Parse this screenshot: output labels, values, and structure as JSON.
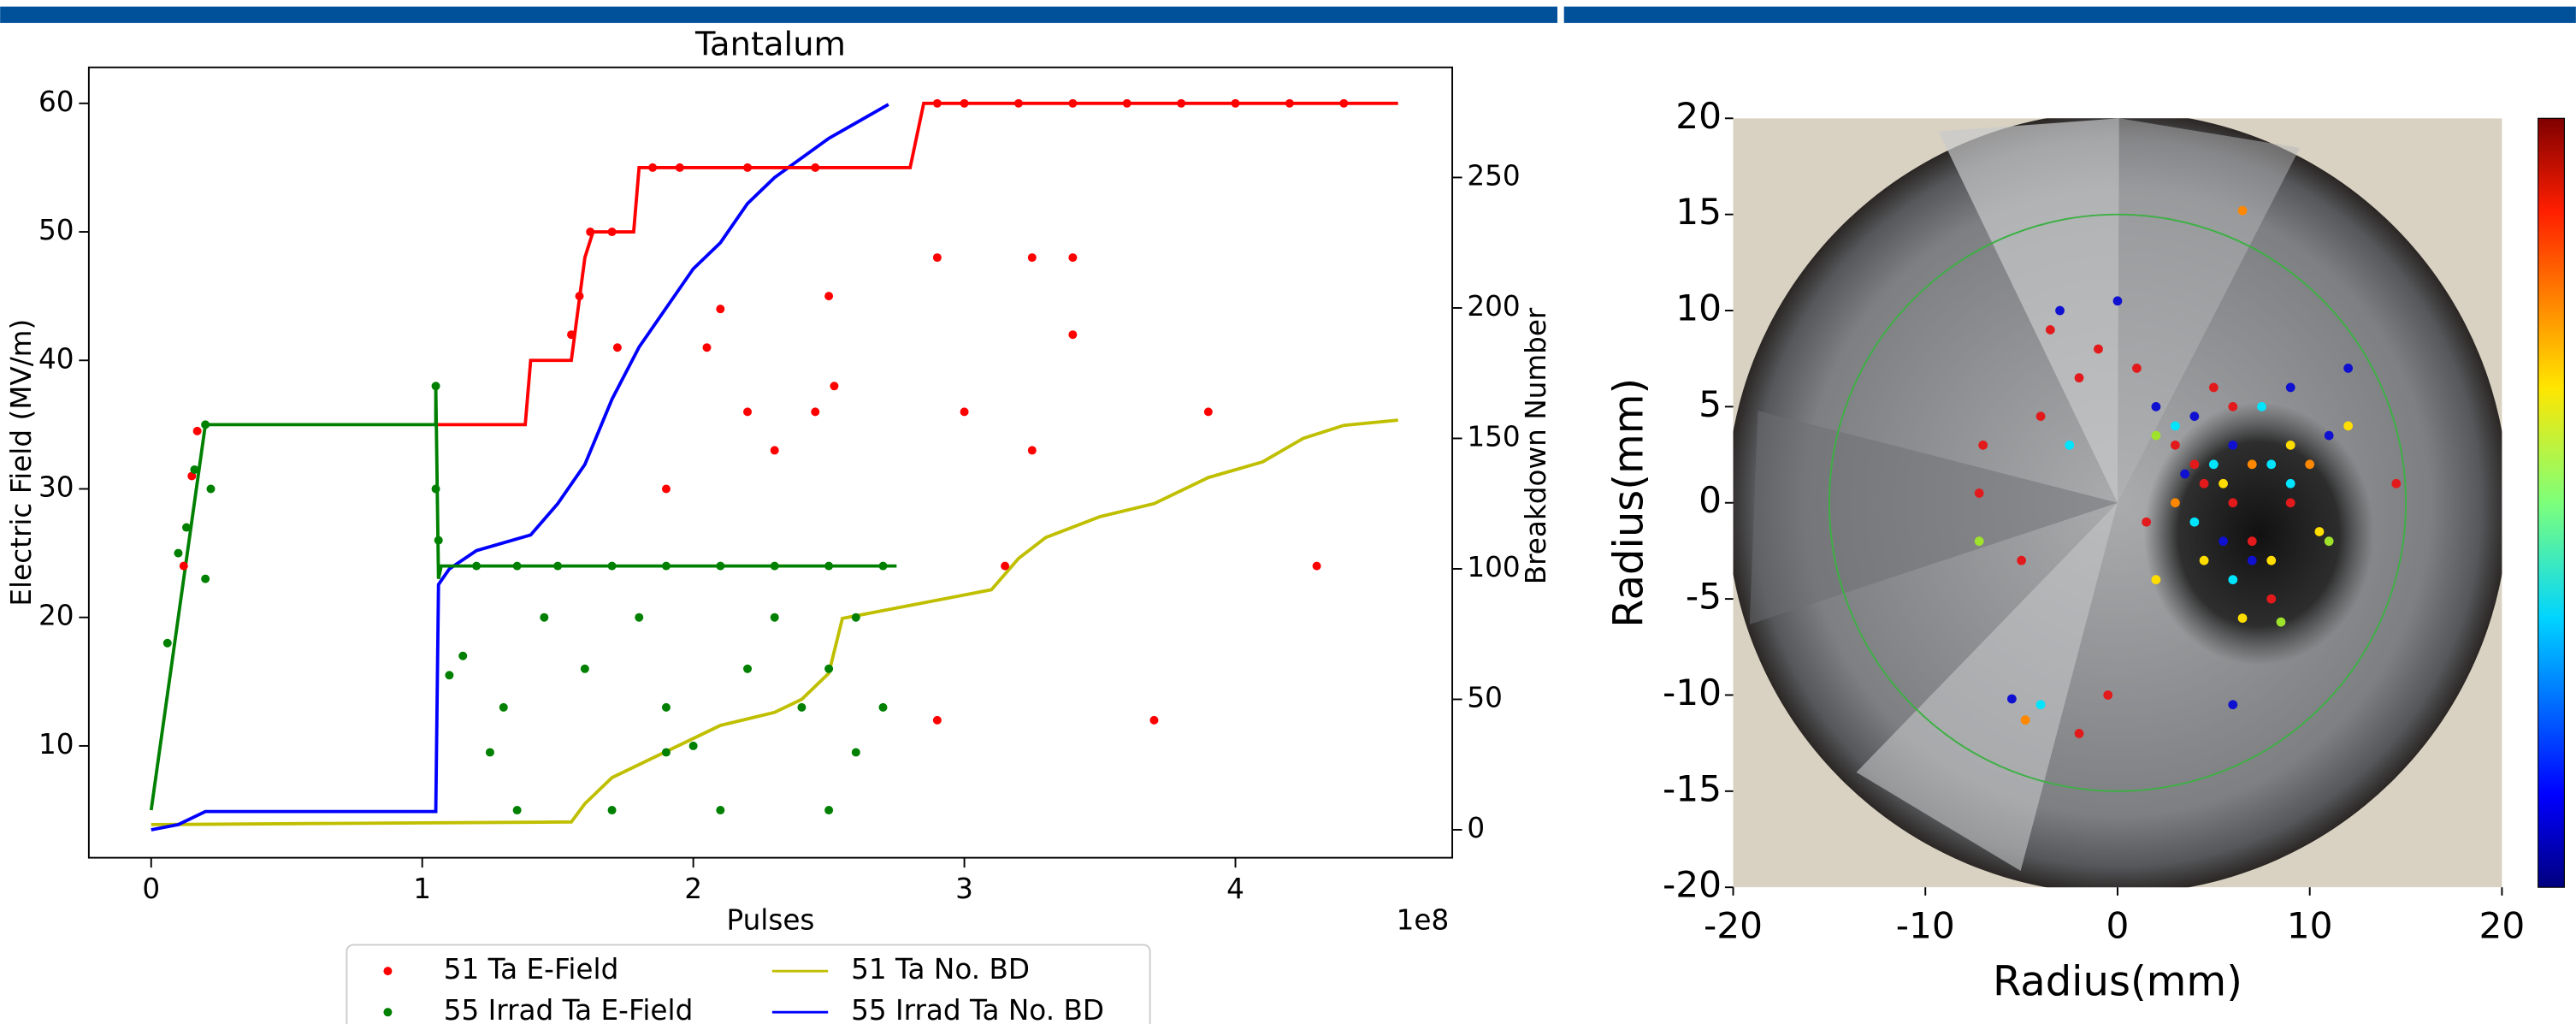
{
  "chart_data": [
    {
      "type": "line",
      "title": "Tantalum",
      "x_label": "Pulses",
      "x_offset_label": "1e8",
      "y_label": "Electric Field (MV/m)",
      "y2_label": "Breakdown Number",
      "xlim": [
        -0.23,
        4.8
      ],
      "xticks": [
        0,
        1,
        2,
        3,
        4
      ],
      "ylim": [
        1.3,
        62.8
      ],
      "yticks": [
        10,
        20,
        30,
        40,
        50,
        60
      ],
      "y2lim": [
        -10.7,
        292.2
      ],
      "y2ticks": [
        0,
        50,
        100,
        150,
        200,
        250
      ],
      "legend": "bottom",
      "series": [
        {
          "name": "51 Ta E-Field",
          "color": "#ff0000",
          "style": "scatter",
          "x": [
            0.12,
            0.15,
            0.17,
            1.55,
            1.58,
            1.62,
            1.7,
            1.85,
            1.95,
            2.2,
            2.45,
            2.5,
            2.52,
            2.45,
            2.2,
            1.9,
            2.3,
            2.05,
            2.1,
            1.72,
            3.2,
            3.0,
            2.9,
            3.4,
            3.6,
            3.8,
            4.0,
            4.2,
            4.4,
            3.25,
            3.4,
            3.25,
            3.4,
            2.9,
            3.0,
            3.7,
            3.15,
            3.9,
            4.3,
            2.9
          ],
          "values": [
            24,
            31,
            34.5,
            42,
            45,
            50,
            50,
            55,
            55,
            55,
            55,
            45,
            38,
            36,
            36,
            30,
            33,
            41,
            44,
            41,
            60,
            60,
            60,
            60,
            60,
            60,
            60,
            60,
            60,
            48,
            48,
            33,
            42,
            48,
            36,
            12,
            24,
            36,
            24,
            12
          ]
        },
        {
          "name": "55 Irrad Ta E-Field",
          "color": "#008000",
          "style": "scatter",
          "x": [
            0.06,
            0.1,
            0.13,
            0.16,
            0.2,
            0.22,
            0.2,
            1.05,
            1.05,
            1.06,
            1.2,
            1.35,
            1.5,
            1.7,
            1.9,
            2.1,
            2.3,
            2.5,
            2.7,
            1.15,
            1.3,
            1.45,
            1.6,
            1.8,
            1.9,
            2.0,
            2.2,
            2.3,
            2.4,
            2.5,
            2.6,
            2.7,
            1.35,
            1.7,
            2.1,
            2.5,
            1.25,
            1.9,
            2.6,
            1.1
          ],
          "values": [
            18,
            25,
            27,
            31.5,
            35,
            30,
            23,
            38,
            30,
            26,
            24,
            24,
            24,
            24,
            24,
            24,
            24,
            24,
            24,
            17,
            13,
            20,
            16,
            20,
            13,
            10,
            16,
            20,
            13,
            16,
            20,
            13,
            5,
            5,
            5,
            5,
            9.5,
            9.5,
            9.5,
            15.5
          ]
        },
        {
          "name": "51 Ta No. BD",
          "color": "#bfbf00",
          "style": "line",
          "axis": "y2",
          "x": [
            0,
            1.55,
            1.6,
            1.7,
            1.8,
            1.9,
            2.0,
            2.1,
            2.3,
            2.4,
            2.5,
            2.55,
            2.7,
            3.1,
            3.2,
            3.3,
            3.5,
            3.7,
            3.9,
            4.1,
            4.25,
            4.4,
            4.6
          ],
          "values": [
            2,
            3,
            10,
            20,
            25,
            30,
            35,
            40,
            45,
            50,
            60,
            81,
            84,
            92,
            104,
            112,
            120,
            125,
            135,
            141,
            150,
            155,
            157
          ]
        },
        {
          "name": "55 Irrad Ta No. BD",
          "color": "#0000ff",
          "style": "line",
          "axis": "y2",
          "x": [
            0,
            0.1,
            0.2,
            1.05,
            1.06,
            1.1,
            1.2,
            1.4,
            1.5,
            1.6,
            1.7,
            1.8,
            1.9,
            2.0,
            2.1,
            2.2,
            2.3,
            2.5,
            2.72
          ],
          "values": [
            0,
            2,
            7,
            7,
            94,
            100,
            107,
            113,
            125,
            140,
            165,
            185,
            200,
            215,
            225,
            240,
            250,
            265,
            278
          ]
        },
        {
          "color": "#ff0000",
          "style": "line",
          "x": [
            1.05,
            1.38,
            1.4,
            1.55,
            1.6,
            1.63,
            1.78,
            1.8,
            2.8,
            2.85,
            4.6
          ],
          "values": [
            35,
            35,
            40,
            40,
            48,
            50,
            50,
            55,
            55,
            60,
            60
          ]
        },
        {
          "color": "#008000",
          "style": "line",
          "x": [
            0,
            0.2,
            1.05,
            1.05,
            1.06,
            1.07,
            2.75
          ],
          "values": [
            5,
            35,
            35,
            38,
            23,
            24,
            24
          ]
        }
      ]
    },
    {
      "type": "scatter",
      "x_label": "Radius(mm)",
      "y_label": "Radius(mm)",
      "xlim": [
        -20,
        20
      ],
      "xticks": [
        -20,
        -10,
        0,
        10,
        20
      ],
      "ylim": [
        -20,
        20
      ],
      "yticks": [
        -20,
        -15,
        -10,
        -5,
        0,
        5,
        10,
        15,
        20
      ],
      "reference_circle": {
        "radius": 15,
        "color": "#3cb043"
      },
      "series": [
        {
          "color": "#e31a1c",
          "x": [
            -3.5,
            -2,
            -1,
            1,
            -7,
            -4,
            3,
            4.5,
            5,
            6,
            7,
            8,
            -0.5,
            -2,
            -5,
            1.5,
            6,
            9,
            14.5,
            -7.2,
            4
          ],
          "values": [
            9,
            6.5,
            8,
            7,
            3,
            4.5,
            3,
            1,
            6,
            5,
            -2,
            -5,
            -10,
            -12,
            -3,
            -1,
            0,
            0,
            1,
            0.5,
            2
          ]
        },
        {
          "color": "#1010d0",
          "x": [
            -3,
            0,
            2,
            4,
            3.5,
            5.5,
            7,
            6,
            9,
            6,
            11,
            12,
            -5.5
          ],
          "values": [
            10,
            10.5,
            5,
            4.5,
            1.5,
            -2,
            -3,
            3,
            6,
            -10.5,
            3.5,
            7,
            -10.2
          ]
        },
        {
          "color": "#00e5ff",
          "x": [
            -2.5,
            3,
            4,
            5,
            8,
            7.5,
            -4,
            6,
            9
          ],
          "values": [
            3,
            4,
            -1,
            2,
            2,
            5,
            -10.5,
            -4,
            1
          ]
        },
        {
          "color": "#ffdd00",
          "x": [
            2,
            4.5,
            5.5,
            8,
            10.5,
            9,
            12,
            6.5
          ],
          "values": [
            -4,
            -3,
            1,
            -3,
            -1.5,
            3,
            4,
            -6
          ]
        },
        {
          "color": "#ff8800",
          "x": [
            6.5,
            -4.8,
            3,
            7,
            10
          ],
          "values": [
            15.2,
            -11.3,
            0,
            2,
            2
          ]
        },
        {
          "color": "#9fe22b",
          "x": [
            -7.2,
            8.5,
            2,
            11
          ],
          "values": [
            -2,
            -6.2,
            3.5,
            -2
          ]
        }
      ]
    }
  ]
}
